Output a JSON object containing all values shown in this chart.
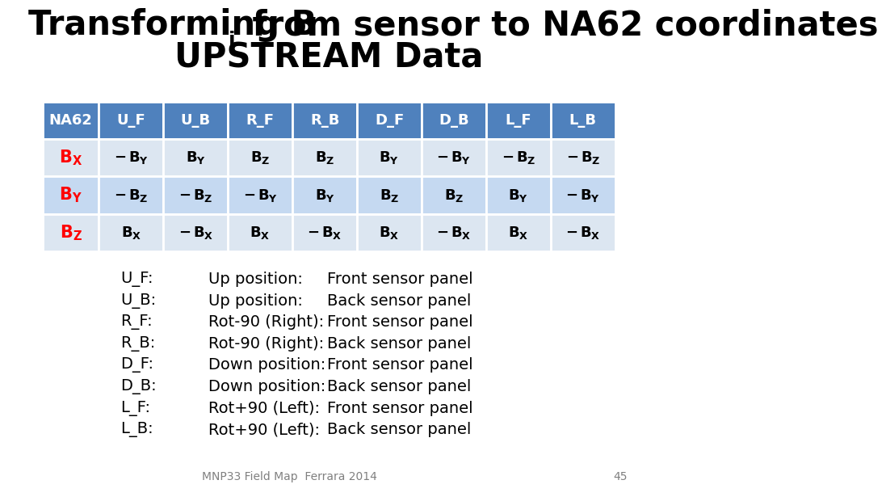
{
  "title_line1": "Transforming B",
  "title_sub": "i",
  "title_line1_rest": " from sensor to NA62 coordinates",
  "title_line2": "UPSTREAM Data",
  "header_bg": "#4f81bd",
  "header_text_color": "#ffffff",
  "row1_bg": "#dce6f1",
  "row2_bg": "#c5d9f1",
  "row3_bg": "#dce6f1",
  "na62_col_label": "NA62",
  "col_labels": [
    "U_F",
    "U_B",
    "R_F",
    "R_B",
    "D_F",
    "D_B",
    "L_F",
    "L_B"
  ],
  "row_label_subs": [
    "X",
    "Y",
    "Z"
  ],
  "row_label_colors": [
    "#ff0000",
    "#ff0000",
    "#ff0000"
  ],
  "table_data": [
    [
      "- B_Y",
      "B_Y",
      "B_Z",
      "B_Z",
      "B_Y",
      "- B_Y",
      "- B_Z",
      "- B_Z"
    ],
    [
      "- B_Z",
      "- B_Z",
      "- B_Y",
      "B_Y",
      "B_Z",
      "B_Z",
      "B_Y",
      "- B_Y"
    ],
    [
      "B_X",
      "- B_X",
      "B_X",
      "- B_X",
      "B_X",
      "- B_X",
      "B_X",
      "- B_X"
    ]
  ],
  "legend_items": [
    [
      "U_F:",
      "Up position:",
      "Front sensor panel"
    ],
    [
      "U_B:",
      "Up position:",
      "Back sensor panel"
    ],
    [
      "R_F:",
      "Rot-90 (Right):",
      "Front sensor panel"
    ],
    [
      "R_B:",
      "Rot-90 (Right):",
      "Back sensor panel"
    ],
    [
      "D_F:",
      "Down position:",
      "Front sensor panel"
    ],
    [
      "D_B:",
      "Down position:",
      "Back sensor panel"
    ],
    [
      "L_F:",
      "Rot+90 (Left):",
      "Front sensor panel"
    ],
    [
      "L_B:",
      "Rot+90 (Left):",
      "Back sensor panel"
    ]
  ],
  "footer_text": "MNP33 Field Map  Ferrara 2014",
  "footer_page": "45",
  "bg_color": "#ffffff"
}
